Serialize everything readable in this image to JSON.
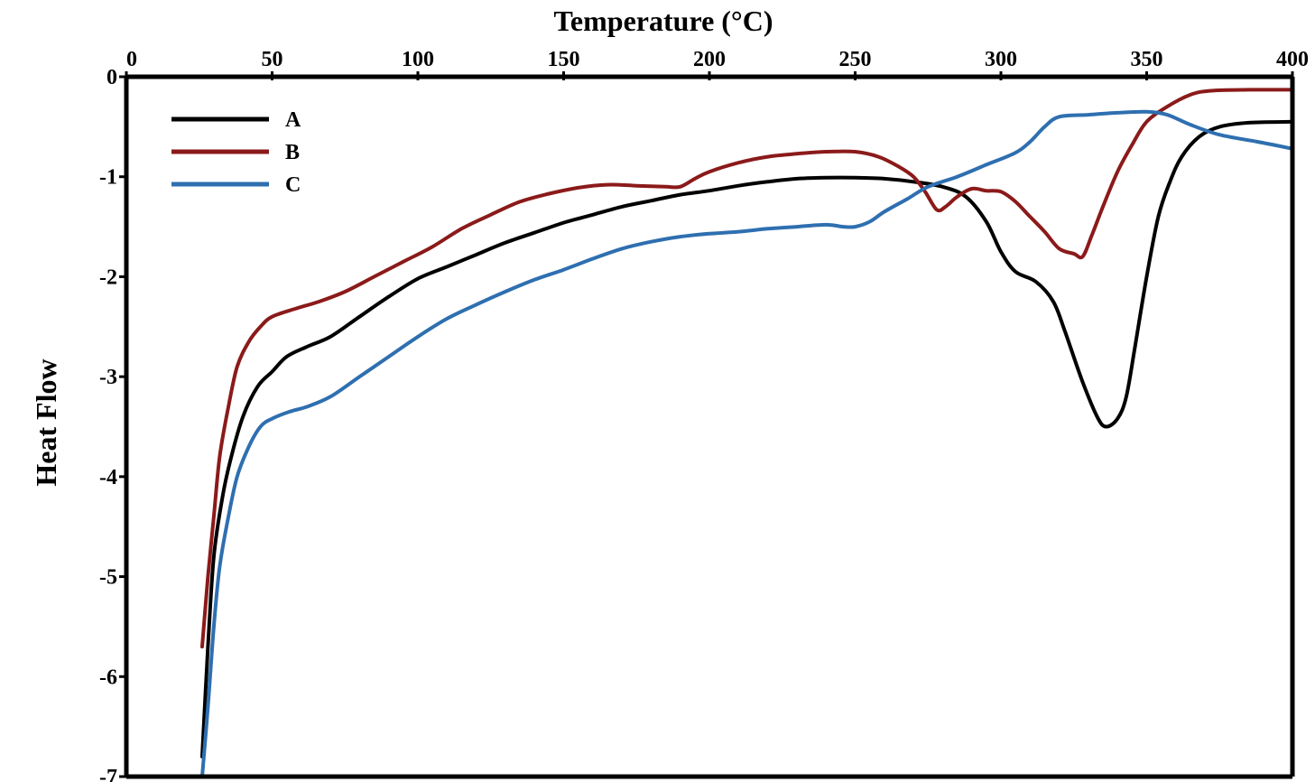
{
  "chart_data": {
    "type": "line",
    "title": "",
    "xlabel": "Temperature (°C)",
    "ylabel": "Heat Flow",
    "xlim": [
      0,
      400
    ],
    "ylim": [
      -7,
      0
    ],
    "x_axis_position": "top",
    "grid": false,
    "legend_position": "top-left",
    "xticks": [
      {
        "value": 0,
        "label": "0"
      },
      {
        "value": 50,
        "label": "50"
      },
      {
        "value": 100,
        "label": "100"
      },
      {
        "value": 150,
        "label": "150"
      },
      {
        "value": 200,
        "label": "200"
      },
      {
        "value": 250,
        "label": "250"
      },
      {
        "value": 300,
        "label": "300"
      },
      {
        "value": 350,
        "label": "350"
      },
      {
        "value": 400,
        "label": "400"
      }
    ],
    "yticks": [
      {
        "value": 0,
        "label": "0"
      },
      {
        "value": -1,
        "label": "-1"
      },
      {
        "value": -2,
        "label": "-2"
      },
      {
        "value": -3,
        "label": "-3"
      },
      {
        "value": -4,
        "label": "-4"
      },
      {
        "value": -5,
        "label": "-5"
      },
      {
        "value": -6,
        "label": "-6"
      },
      {
        "value": -7,
        "label": "-7"
      }
    ],
    "series": [
      {
        "name": "A",
        "color": "#000000",
        "points": [
          [
            26,
            -6.8
          ],
          [
            28,
            -5.7
          ],
          [
            30,
            -4.8
          ],
          [
            33,
            -4.2
          ],
          [
            36,
            -3.8
          ],
          [
            40,
            -3.4
          ],
          [
            45,
            -3.1
          ],
          [
            50,
            -2.95
          ],
          [
            55,
            -2.8
          ],
          [
            62,
            -2.7
          ],
          [
            70,
            -2.6
          ],
          [
            80,
            -2.4
          ],
          [
            90,
            -2.2
          ],
          [
            100,
            -2.02
          ],
          [
            110,
            -1.9
          ],
          [
            120,
            -1.78
          ],
          [
            130,
            -1.66
          ],
          [
            140,
            -1.56
          ],
          [
            150,
            -1.46
          ],
          [
            160,
            -1.38
          ],
          [
            170,
            -1.3
          ],
          [
            180,
            -1.24
          ],
          [
            190,
            -1.18
          ],
          [
            200,
            -1.14
          ],
          [
            210,
            -1.09
          ],
          [
            220,
            -1.05
          ],
          [
            230,
            -1.02
          ],
          [
            240,
            -1.01
          ],
          [
            250,
            -1.01
          ],
          [
            260,
            -1.02
          ],
          [
            270,
            -1.05
          ],
          [
            280,
            -1.1
          ],
          [
            288,
            -1.2
          ],
          [
            295,
            -1.45
          ],
          [
            300,
            -1.75
          ],
          [
            305,
            -1.95
          ],
          [
            312,
            -2.05
          ],
          [
            318,
            -2.25
          ],
          [
            322,
            -2.55
          ],
          [
            328,
            -3.05
          ],
          [
            333,
            -3.4
          ],
          [
            336,
            -3.5
          ],
          [
            340,
            -3.42
          ],
          [
            343,
            -3.2
          ],
          [
            346,
            -2.7
          ],
          [
            350,
            -2.0
          ],
          [
            354,
            -1.4
          ],
          [
            358,
            -1.05
          ],
          [
            362,
            -0.8
          ],
          [
            368,
            -0.6
          ],
          [
            375,
            -0.5
          ],
          [
            385,
            -0.46
          ],
          [
            400,
            -0.45
          ]
        ]
      },
      {
        "name": "B",
        "color": "#8b1a1a",
        "points": [
          [
            26,
            -5.7
          ],
          [
            28,
            -5.0
          ],
          [
            30,
            -4.4
          ],
          [
            32,
            -3.8
          ],
          [
            35,
            -3.3
          ],
          [
            38,
            -2.9
          ],
          [
            42,
            -2.65
          ],
          [
            46,
            -2.5
          ],
          [
            50,
            -2.4
          ],
          [
            58,
            -2.32
          ],
          [
            66,
            -2.25
          ],
          [
            75,
            -2.15
          ],
          [
            85,
            -2.0
          ],
          [
            95,
            -1.85
          ],
          [
            105,
            -1.7
          ],
          [
            115,
            -1.52
          ],
          [
            125,
            -1.38
          ],
          [
            135,
            -1.25
          ],
          [
            145,
            -1.17
          ],
          [
            155,
            -1.11
          ],
          [
            165,
            -1.08
          ],
          [
            175,
            -1.09
          ],
          [
            185,
            -1.1
          ],
          [
            190,
            -1.1
          ],
          [
            195,
            -1.02
          ],
          [
            200,
            -0.95
          ],
          [
            210,
            -0.86
          ],
          [
            220,
            -0.8
          ],
          [
            230,
            -0.77
          ],
          [
            240,
            -0.75
          ],
          [
            250,
            -0.75
          ],
          [
            258,
            -0.8
          ],
          [
            265,
            -0.9
          ],
          [
            270,
            -1.0
          ],
          [
            274,
            -1.15
          ],
          [
            278,
            -1.33
          ],
          [
            281,
            -1.3
          ],
          [
            285,
            -1.2
          ],
          [
            290,
            -1.12
          ],
          [
            295,
            -1.14
          ],
          [
            300,
            -1.15
          ],
          [
            305,
            -1.25
          ],
          [
            310,
            -1.4
          ],
          [
            315,
            -1.55
          ],
          [
            320,
            -1.72
          ],
          [
            325,
            -1.77
          ],
          [
            328,
            -1.8
          ],
          [
            331,
            -1.6
          ],
          [
            335,
            -1.3
          ],
          [
            340,
            -0.95
          ],
          [
            345,
            -0.68
          ],
          [
            350,
            -0.45
          ],
          [
            357,
            -0.3
          ],
          [
            365,
            -0.18
          ],
          [
            372,
            -0.14
          ],
          [
            385,
            -0.13
          ],
          [
            400,
            -0.13
          ]
        ]
      },
      {
        "name": "C",
        "color": "#2e6fb0",
        "points": [
          [
            26,
            -7.0
          ],
          [
            28,
            -6.3
          ],
          [
            30,
            -5.5
          ],
          [
            32,
            -4.9
          ],
          [
            35,
            -4.4
          ],
          [
            38,
            -4.0
          ],
          [
            42,
            -3.7
          ],
          [
            46,
            -3.5
          ],
          [
            50,
            -3.42
          ],
          [
            56,
            -3.35
          ],
          [
            62,
            -3.3
          ],
          [
            70,
            -3.2
          ],
          [
            80,
            -3.0
          ],
          [
            90,
            -2.8
          ],
          [
            100,
            -2.6
          ],
          [
            110,
            -2.42
          ],
          [
            120,
            -2.28
          ],
          [
            130,
            -2.15
          ],
          [
            140,
            -2.03
          ],
          [
            150,
            -1.93
          ],
          [
            160,
            -1.82
          ],
          [
            170,
            -1.72
          ],
          [
            180,
            -1.65
          ],
          [
            190,
            -1.6
          ],
          [
            200,
            -1.57
          ],
          [
            210,
            -1.55
          ],
          [
            220,
            -1.52
          ],
          [
            230,
            -1.5
          ],
          [
            240,
            -1.48
          ],
          [
            246,
            -1.5
          ],
          [
            250,
            -1.5
          ],
          [
            255,
            -1.45
          ],
          [
            260,
            -1.35
          ],
          [
            268,
            -1.22
          ],
          [
            275,
            -1.1
          ],
          [
            285,
            -1.0
          ],
          [
            295,
            -0.88
          ],
          [
            305,
            -0.76
          ],
          [
            310,
            -0.65
          ],
          [
            315,
            -0.5
          ],
          [
            320,
            -0.4
          ],
          [
            330,
            -0.38
          ],
          [
            340,
            -0.36
          ],
          [
            350,
            -0.35
          ],
          [
            357,
            -0.38
          ],
          [
            365,
            -0.48
          ],
          [
            375,
            -0.58
          ],
          [
            388,
            -0.65
          ],
          [
            400,
            -0.72
          ]
        ]
      }
    ]
  }
}
